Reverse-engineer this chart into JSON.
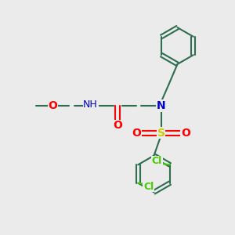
{
  "bg_color": "#ebebeb",
  "bond_color": "#2d6e4e",
  "bond_width": 1.5,
  "atom_colors": {
    "N": "#0000cc",
    "O": "#ff0000",
    "S": "#cccc00",
    "Cl": "#44cc00",
    "C": "#2d6e4e",
    "H": "#0000cc"
  },
  "font_size": 9,
  "font_size_small": 8
}
